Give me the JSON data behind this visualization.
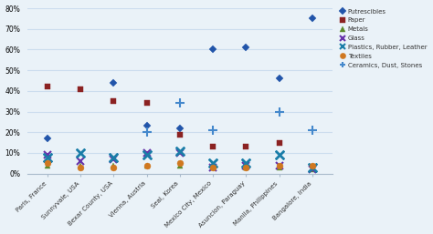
{
  "categories": [
    "Paris, France",
    "Sunnyvale, USA",
    "Bexar County, USA",
    "Vienna, Austria",
    "Seal, Korea",
    "Mexico City, Mexico",
    "Asuncion, Paraguay",
    "Manila, Philippines",
    "Bangalore, India"
  ],
  "series": {
    "Putrescibles": [
      17,
      null,
      44,
      23,
      22,
      60,
      61,
      46,
      75
    ],
    "Paper": [
      42,
      41,
      35,
      34,
      19,
      13,
      13,
      15,
      null
    ],
    "Metals": [
      4,
      4,
      4,
      4,
      4,
      3,
      3,
      3,
      2
    ],
    "Glass": [
      9,
      6,
      7,
      10,
      10,
      3,
      4,
      4,
      2
    ],
    "Plastics, Rubber, Leather": [
      8,
      10,
      8,
      9,
      11,
      5,
      5,
      9,
      3
    ],
    "Textiles": [
      5,
      3,
      3,
      4,
      5,
      3,
      3,
      4,
      4
    ],
    "Ceramics, Dust, Stones": [
      null,
      null,
      null,
      20,
      34,
      21,
      null,
      30,
      21
    ]
  },
  "colors": {
    "Putrescibles": "#2255AA",
    "Paper": "#8B2222",
    "Metals": "#5A8A2A",
    "Glass": "#6633AA",
    "Plastics, Rubber, Leather": "#1A7DA8",
    "Textiles": "#D07820",
    "Ceramics, Dust, Stones": "#4488CC"
  },
  "markers": {
    "Putrescibles": "D",
    "Paper": "s",
    "Metals": "^",
    "Glass": "x",
    "Textiles": "o",
    "Ceramics, Dust, Stones": "+"
  },
  "marker_sizes": {
    "Putrescibles": 4,
    "Paper": 5,
    "Metals": 5,
    "Glass": 6,
    "Plastics, Rubber, Leather": 6,
    "Textiles": 5,
    "Ceramics, Dust, Stones": 7
  },
  "ylim": [
    0,
    80
  ],
  "yticks": [
    0,
    10,
    20,
    30,
    40,
    50,
    60,
    70,
    80
  ],
  "background_color": "#EAF2F8",
  "grid_color": "#CCDDEE",
  "plot_area_color": "#EAF2F8"
}
